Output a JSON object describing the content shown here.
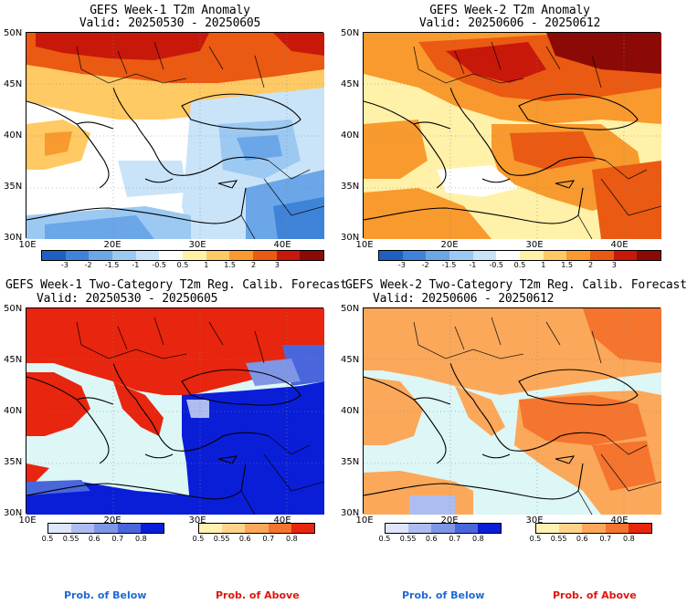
{
  "panels": [
    {
      "id": "p1",
      "title": "GEFS Week-1 T2m Anomaly",
      "valid": "Valid: 20250530 - 20250605",
      "kind": "anomaly",
      "colorbar_labels": [
        "-3",
        "-2",
        "-1.5",
        "-1",
        "-0.5",
        "0.5",
        "1",
        "1.5",
        "2",
        "3"
      ]
    },
    {
      "id": "p2",
      "title": "GEFS Week-2 T2m Anomaly",
      "valid": "Valid: 20250606 - 20250612",
      "kind": "anomaly",
      "colorbar_labels": [
        "-3",
        "-2",
        "-1.5",
        "-1",
        "-0.5",
        "0.5",
        "1",
        "1.5",
        "2",
        "3"
      ]
    },
    {
      "id": "p3",
      "title": "GEFS Week-1 Two-Category T2m Reg. Calib. Forecast",
      "valid": "Valid: 20250530 - 20250605",
      "kind": "probability",
      "below_labels": [
        "0.5",
        "0.55",
        "0.6",
        "0.7",
        "0.8"
      ],
      "above_labels": [
        "0.5",
        "0.55",
        "0.6",
        "0.7",
        "0.8"
      ],
      "below_caption": "Prob. of Below",
      "above_caption": "Prob. of Above"
    },
    {
      "id": "p4",
      "title": "GEFS Week-2 Two-Category T2m Reg. Calib. Forecast",
      "valid": "Valid: 20250606 - 20250612",
      "kind": "probability",
      "below_labels": [
        "0.5",
        "0.55",
        "0.6",
        "0.7",
        "0.8"
      ],
      "above_labels": [
        "0.5",
        "0.55",
        "0.6",
        "0.7",
        "0.8"
      ],
      "below_caption": "Prob. of Below",
      "above_caption": "Prob. of Above"
    }
  ],
  "axes": {
    "lat_labels": [
      "50N",
      "45N",
      "40N",
      "35N",
      "30N"
    ],
    "lon_labels": [
      "10E",
      "20E",
      "30E",
      "40E"
    ]
  },
  "colors": {
    "anomaly_scale": [
      "#1f5fc4",
      "#3f83d8",
      "#6aa6e8",
      "#9cc9f2",
      "#c9e3f8",
      "#ffffff",
      "#fff1a8",
      "#ffc964",
      "#f89a2e",
      "#ea5a12",
      "#c8180a",
      "#8c0a05"
    ],
    "below_scale": [
      "#dde6fb",
      "#aebdf0",
      "#7f95e6",
      "#4a66dc",
      "#0a1ed8"
    ],
    "above_scale": [
      "#fff2b3",
      "#ffd48a",
      "#fba85a",
      "#f5742e",
      "#e8250e"
    ],
    "sea_prob": "#ddf6f6",
    "below_caption": "#1e6ad6",
    "above_caption": "#e0160c"
  }
}
